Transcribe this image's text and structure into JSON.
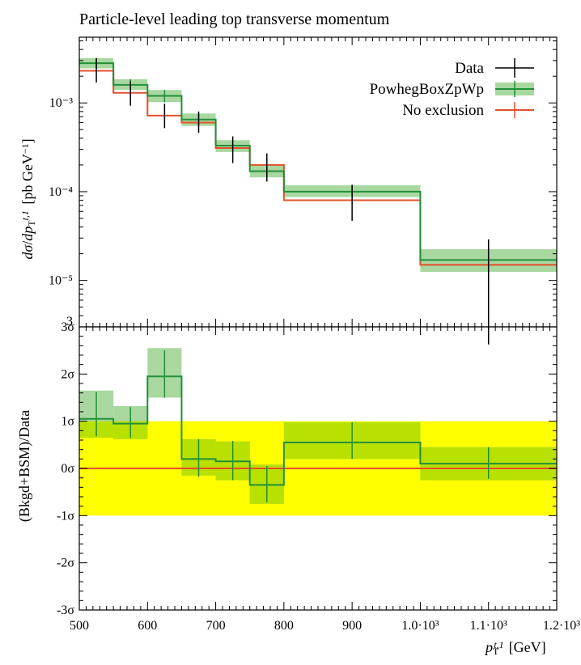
{
  "title": "Particle-level leading top transverse momentum",
  "colors": {
    "data": "#000000",
    "mc": "#22903a",
    "mc_band": "#a8d8a0",
    "reference": "#e4502a",
    "sigma1": "#ffff00",
    "overlap": "#b8e000",
    "frame": "#000000"
  },
  "chart_data": [
    {
      "type": "line",
      "title": "Particle-level leading top transverse momentum",
      "ylabel": "dσ/dp_T^{t,1} [pb GeV^-1]",
      "xlim": [
        500,
        1200
      ],
      "ylim": [
        3e-06,
        0.0055
      ],
      "yscale": "log",
      "x_tick_labels": [
        "500",
        "600",
        "700",
        "800",
        "900",
        "1.0·10³",
        "1.1·10³",
        "1.2·10³"
      ],
      "y_tick_labels": [
        "10⁻³",
        "10⁻⁴",
        "10⁻⁵",
        "3"
      ],
      "bin_edges": [
        500,
        550,
        600,
        650,
        700,
        750,
        800,
        1000,
        1200
      ],
      "legend": {
        "position": "top-right"
      },
      "series": [
        {
          "name": "Data",
          "style": "points",
          "x": [
            525,
            575,
            625,
            675,
            725,
            775,
            900,
            1100
          ],
          "values": [
            0.0024,
            0.0013,
            0.00072,
            0.00062,
            0.0003,
            0.00018,
            8.2e-05,
            1.5e-05
          ],
          "err_low": [
            0.0017,
            0.00093,
            0.00052,
            0.00046,
            0.00021,
            0.00013,
            4.7e-05,
            1.9e-06
          ],
          "err_high": [
            0.0032,
            0.00175,
            0.00098,
            0.0008,
            0.00042,
            0.00027,
            0.00012,
            2.9e-05
          ]
        },
        {
          "name": "PowhegBoxZpWp",
          "style": "step_band",
          "values": [
            0.0028,
            0.0016,
            0.0012,
            0.00065,
            0.00033,
            0.00017,
            0.0001,
            1.7e-05
          ],
          "band_low": [
            0.00245,
            0.0014,
            0.00102,
            0.00055,
            0.00028,
            0.000145,
            8.7e-05,
            1.25e-05
          ],
          "band_high": [
            0.0032,
            0.00185,
            0.0014,
            0.00076,
            0.00038,
            0.0002,
            0.000118,
            2.25e-05
          ]
        },
        {
          "name": "No exclusion",
          "style": "step",
          "values": [
            0.0023,
            0.0013,
            0.00072,
            0.0006,
            0.00031,
            0.0002,
            8e-05,
            1.5e-05
          ]
        }
      ]
    },
    {
      "type": "line",
      "ylabel": "(Bkgd+BSM)/Data",
      "xlabel": "p_T^{t,1} [GeV]",
      "xlim": [
        500,
        1200
      ],
      "ylim": [
        -3,
        3
      ],
      "y_tick_labels": [
        "3σ",
        "2σ",
        "1σ",
        "0σ",
        "-1σ",
        "-2σ",
        "-3σ"
      ],
      "bin_edges": [
        500,
        550,
        600,
        650,
        700,
        750,
        800,
        1000,
        1200
      ],
      "sigma_band": [
        -1,
        1
      ],
      "reference_line": 0,
      "series": [
        {
          "name": "PowhegBoxZpWp",
          "style": "step_band",
          "values": [
            1.05,
            0.95,
            1.95,
            0.2,
            0.15,
            -0.35,
            0.55,
            0.1
          ],
          "band_low": [
            0.65,
            0.62,
            1.5,
            -0.15,
            -0.25,
            -0.75,
            0.2,
            -0.25
          ],
          "band_high": [
            1.65,
            1.32,
            2.55,
            0.62,
            0.57,
            0.08,
            0.98,
            0.45
          ]
        },
        {
          "name": "PowhegBoxZpWp",
          "style": "points",
          "x": [
            525,
            575,
            625,
            675,
            725,
            775,
            900,
            1100
          ],
          "values": [
            1.05,
            0.95,
            1.95,
            0.2,
            0.15,
            -0.35,
            0.55,
            0.1
          ],
          "err_low": [
            0.68,
            0.65,
            1.5,
            -0.18,
            -0.25,
            -0.72,
            0.2,
            -0.22
          ],
          "err_high": [
            1.62,
            1.3,
            2.5,
            0.62,
            0.58,
            0.05,
            0.98,
            0.45
          ]
        }
      ]
    }
  ]
}
